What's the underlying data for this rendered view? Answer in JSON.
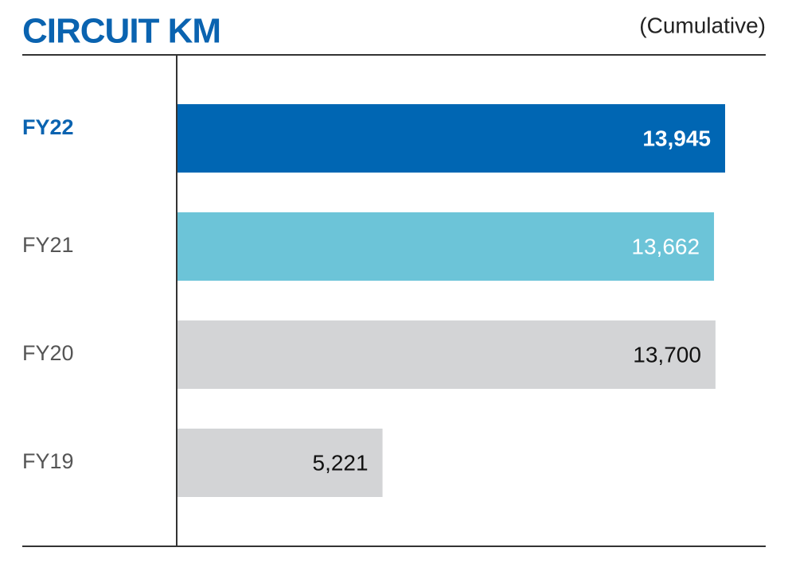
{
  "chart_data": {
    "type": "bar",
    "orientation": "horizontal",
    "title": "CIRCUIT KM",
    "subtitle": "(Cumulative)",
    "categories": [
      "FY22",
      "FY21",
      "FY20",
      "FY19"
    ],
    "values": [
      13945,
      13662,
      13700,
      5221
    ],
    "value_labels": [
      "13,945",
      "13,662",
      "13,700",
      "5,221"
    ],
    "colors": [
      "#0066b3",
      "#6cc4d8",
      "#d3d4d6",
      "#d3d4d6"
    ],
    "label_colors": [
      "#ffffff",
      "#ffffff",
      "#111111",
      "#111111"
    ],
    "category_colors": [
      "#0a63b0",
      "#555555",
      "#555555",
      "#555555"
    ]
  }
}
